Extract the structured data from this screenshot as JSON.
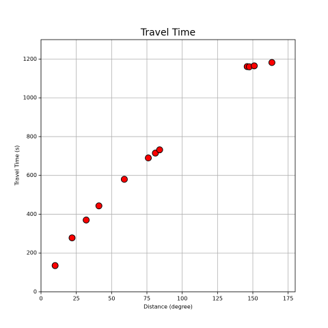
{
  "chart_data": {
    "type": "scatter",
    "title": "Travel Time",
    "x_label": "Distance (degree)",
    "y_label": "Travel Time (s)",
    "x": [
      10,
      22,
      32,
      41,
      59,
      76,
      81,
      84,
      146,
      147.5,
      151,
      163.5
    ],
    "y": [
      135,
      278,
      370,
      443,
      580,
      690,
      715,
      732,
      1161,
      1160,
      1165,
      1182
    ],
    "color": "#ff0000",
    "edgecolor": "#000000",
    "xlim": [
      0,
      180
    ],
    "ylim": [
      0,
      1300
    ],
    "xticks": [
      0,
      25,
      50,
      75,
      100,
      125,
      150,
      175
    ],
    "yticks": [
      0,
      200,
      400,
      600,
      800,
      1000,
      1200
    ],
    "grid": true
  }
}
